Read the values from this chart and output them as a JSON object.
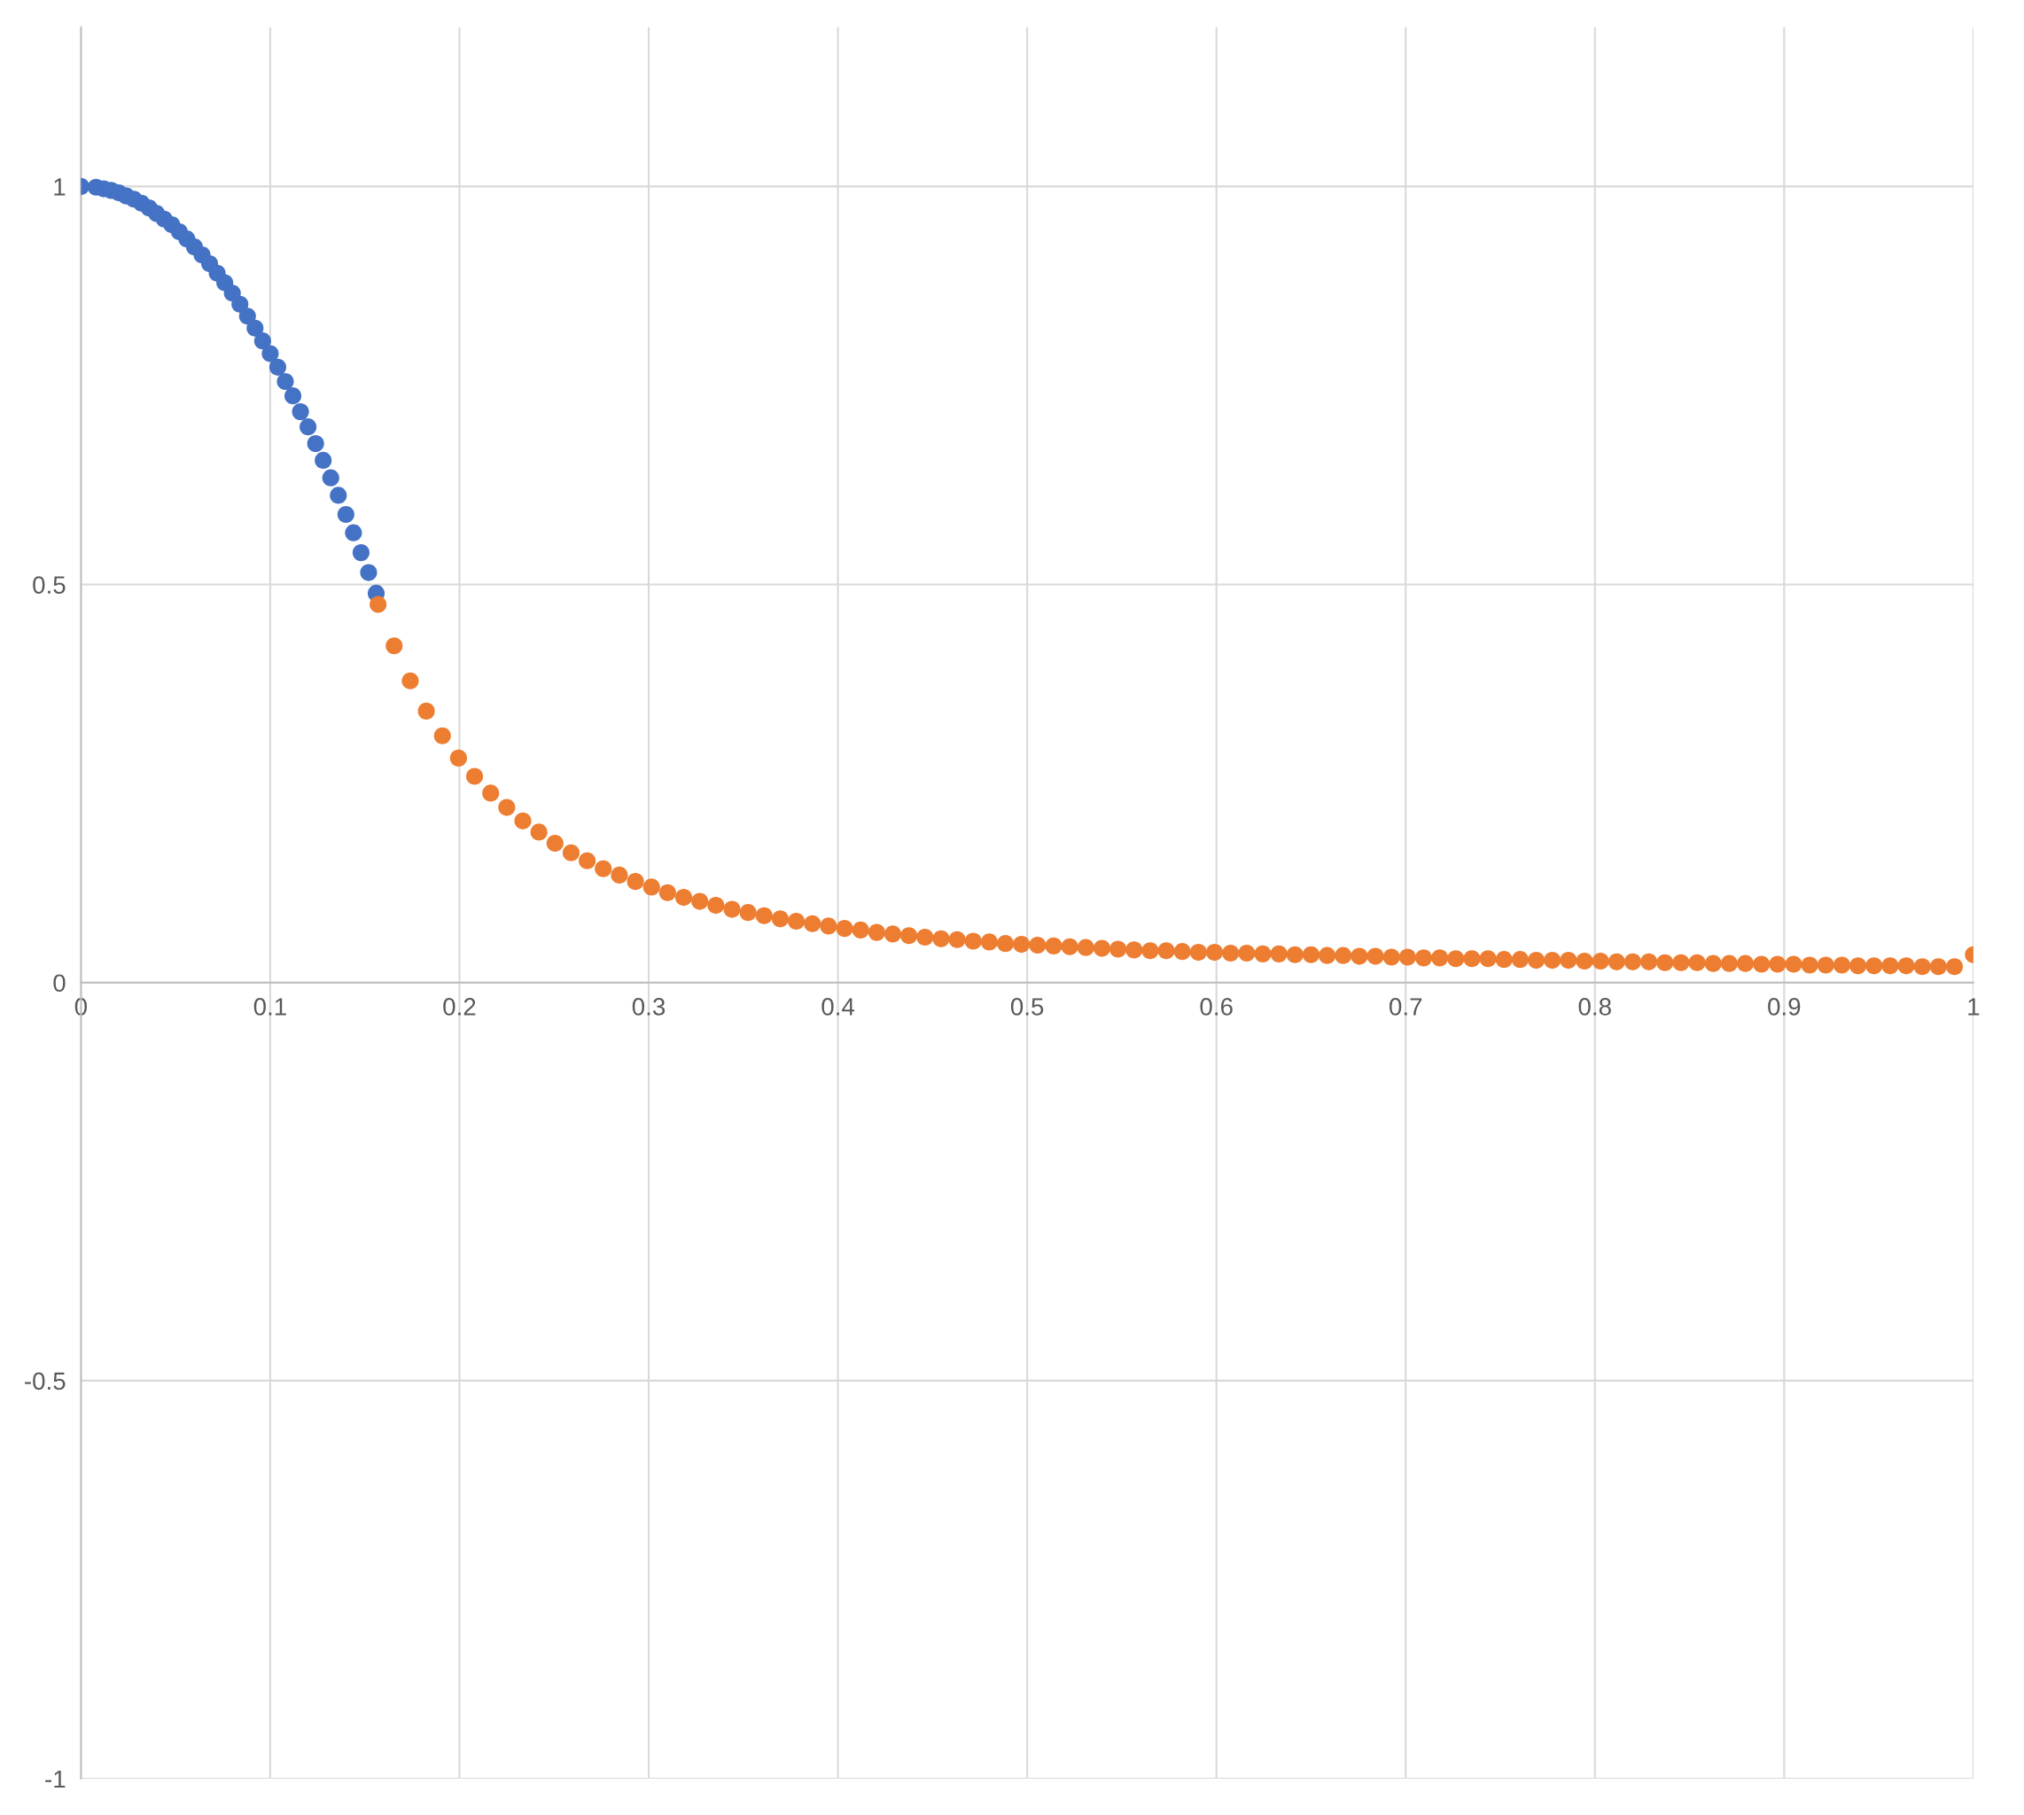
{
  "chart_data": {
    "type": "scatter",
    "xlim": [
      0,
      1.0
    ],
    "ylim": [
      -1,
      1.2
    ],
    "xticks": [
      0,
      0.1,
      0.2,
      0.3,
      0.4,
      0.5,
      0.6,
      0.7,
      0.8,
      0.9,
      1
    ],
    "yticks": [
      -1,
      -0.5,
      0,
      0.5,
      1
    ],
    "grid": true,
    "marker": "circle",
    "series": [
      {
        "color": "#4472c4",
        "x": [
          0,
          0.008,
          0.012,
          0.016,
          0.02,
          0.024,
          0.028,
          0.032,
          0.036,
          0.04,
          0.044,
          0.048,
          0.052,
          0.056,
          0.06,
          0.064,
          0.068,
          0.072,
          0.076,
          0.08,
          0.084,
          0.088,
          0.092,
          0.096,
          0.1,
          0.104,
          0.108,
          0.112,
          0.116,
          0.12,
          0.124,
          0.128,
          0.132,
          0.136,
          0.14,
          0.144,
          0.148,
          0.152,
          0.156
        ],
        "values": [
          1.0,
          0.999,
          0.997,
          0.995,
          0.992,
          0.988,
          0.984,
          0.979,
          0.973,
          0.966,
          0.959,
          0.952,
          0.943,
          0.934,
          0.924,
          0.914,
          0.903,
          0.891,
          0.879,
          0.866,
          0.852,
          0.837,
          0.822,
          0.806,
          0.79,
          0.773,
          0.755,
          0.737,
          0.717,
          0.698,
          0.677,
          0.656,
          0.634,
          0.612,
          0.588,
          0.565,
          0.54,
          0.515,
          0.489
        ]
      },
      {
        "color": "#ed7d31",
        "x": [
          0.157,
          0.1655,
          0.174,
          0.1825,
          0.191,
          0.1995,
          0.208,
          0.2165,
          0.225,
          0.2335,
          0.242,
          0.2505,
          0.259,
          0.2675,
          0.276,
          0.2845,
          0.293,
          0.3015,
          0.31,
          0.3185,
          0.327,
          0.3355,
          0.344,
          0.3525,
          0.361,
          0.3695,
          0.378,
          0.3865,
          0.395,
          0.4035,
          0.412,
          0.4205,
          0.429,
          0.4375,
          0.446,
          0.4545,
          0.463,
          0.4715,
          0.48,
          0.4885,
          0.497,
          0.5055,
          0.514,
          0.5225,
          0.531,
          0.5395,
          0.548,
          0.5565,
          0.565,
          0.5735,
          0.582,
          0.5905,
          0.599,
          0.6075,
          0.616,
          0.6245,
          0.633,
          0.6415,
          0.65,
          0.6585,
          0.667,
          0.6755,
          0.684,
          0.6925,
          0.701,
          0.7095,
          0.718,
          0.7265,
          0.735,
          0.7435,
          0.752,
          0.7605,
          0.769,
          0.7775,
          0.786,
          0.7945,
          0.803,
          0.8115,
          0.82,
          0.8285,
          0.837,
          0.8455,
          0.854,
          0.8625,
          0.871,
          0.8795,
          0.888,
          0.8965,
          0.905,
          0.9135,
          0.922,
          0.9305,
          0.939,
          0.9475,
          0.956,
          0.9645,
          0.973,
          0.9815,
          0.99,
          1.0
        ],
        "values": [
          0.475,
          0.423,
          0.379,
          0.341,
          0.31,
          0.282,
          0.259,
          0.238,
          0.22,
          0.203,
          0.189,
          0.175,
          0.163,
          0.153,
          0.143,
          0.135,
          0.127,
          0.12,
          0.113,
          0.107,
          0.102,
          0.097,
          0.092,
          0.088,
          0.084,
          0.08,
          0.077,
          0.074,
          0.071,
          0.068,
          0.066,
          0.063,
          0.061,
          0.059,
          0.057,
          0.055,
          0.054,
          0.052,
          0.051,
          0.049,
          0.048,
          0.047,
          0.046,
          0.045,
          0.044,
          0.043,
          0.042,
          0.041,
          0.04,
          0.04,
          0.039,
          0.038,
          0.038,
          0.037,
          0.037,
          0.036,
          0.036,
          0.035,
          0.035,
          0.034,
          0.034,
          0.033,
          0.033,
          0.032,
          0.032,
          0.031,
          0.031,
          0.03,
          0.03,
          0.03,
          0.029,
          0.029,
          0.028,
          0.028,
          0.028,
          0.027,
          0.027,
          0.026,
          0.026,
          0.026,
          0.025,
          0.025,
          0.025,
          0.024,
          0.024,
          0.024,
          0.023,
          0.023,
          0.023,
          0.022,
          0.022,
          0.022,
          0.021,
          0.021,
          0.021,
          0.021,
          0.02,
          0.02,
          0.02,
          0.035
        ]
      }
    ]
  }
}
